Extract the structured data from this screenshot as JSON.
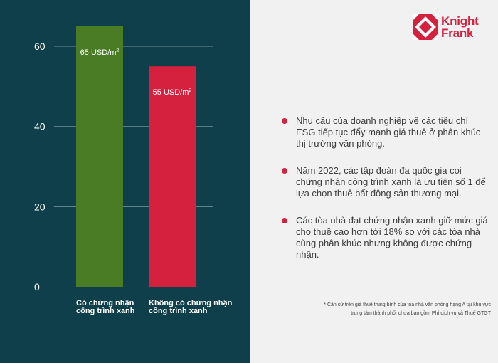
{
  "brand": {
    "name_line1": "Knight",
    "name_line2": "Frank",
    "colors": {
      "red": "#d6213e",
      "green": "#4a7b25",
      "navy": "#0e3f4a"
    }
  },
  "chart_data": {
    "type": "bar",
    "categories": [
      [
        "Có chứng nhận",
        "công trình xanh"
      ],
      [
        "Không có chứng nhận",
        "công trình xanh"
      ]
    ],
    "values": [
      65,
      55
    ],
    "value_labels": [
      "65 USD/m",
      "55 USD/m"
    ],
    "value_label_unit_sup": "2",
    "bar_colors": [
      "#4a7b25",
      "#d6213e"
    ],
    "ylim": [
      0,
      68
    ],
    "yticks": [
      0,
      20,
      40,
      60
    ],
    "grid": true,
    "title": "",
    "xlabel": "",
    "ylabel": ""
  },
  "bullets": [
    "Nhu cầu của doanh nghiệp về các tiêu chí ESG tiếp tục đẩy mạnh giá thuê ở phân khúc thị trường văn phòng.",
    "Năm 2022, các tập đoàn đa quốc gia coi chứng nhận công trình xanh là ưu tiên số 1 để lựa chọn thuê bất động sản thương mại.",
    "Các tòa nhà đạt chứng nhận xanh giữ mức giá cho thuê cao hơn tới 18% so với các tòa nhà cùng phân khúc nhưng không được chứng nhận."
  ],
  "footnote": {
    "line1": "* Căn cứ trên giá thuê trung bình của tòa nhà văn phòng hạng A tại khu vực",
    "line2": "trung tâm thành phố, chưa bao gồm Phí dịch vụ và Thuế GTGT"
  }
}
